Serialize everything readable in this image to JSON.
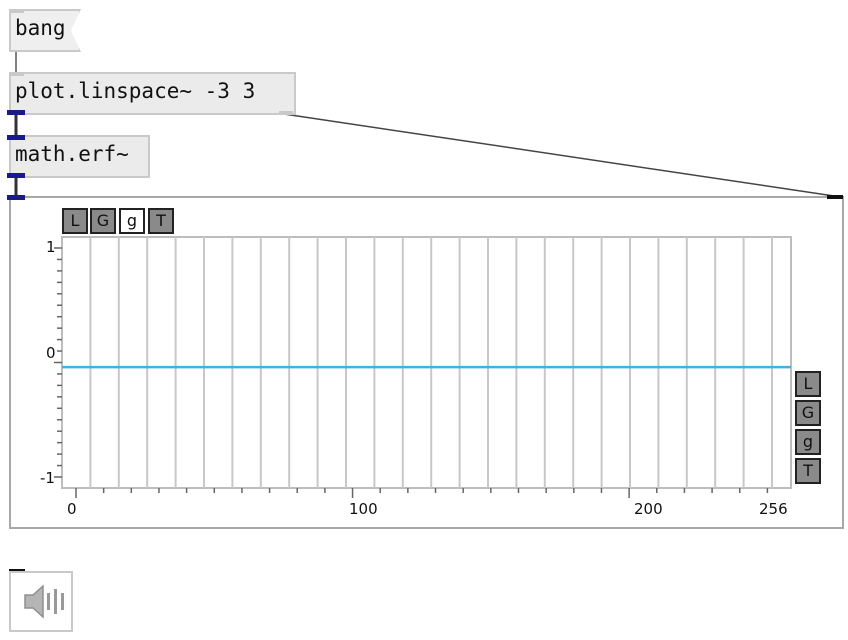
{
  "objects": {
    "bang_label": "bang",
    "linspace_label": "plot.linspace~ -3 3",
    "erf_label": "math.erf~"
  },
  "plot": {
    "top_buttons": [
      "L",
      "G",
      "g",
      "T"
    ],
    "side_buttons": [
      "L",
      "G",
      "g",
      "T"
    ],
    "active_top_button": "g"
  },
  "chart_data": {
    "type": "line",
    "x_ticks": [
      "0",
      "100",
      "200",
      "256"
    ],
    "y_ticks": [
      "1",
      "0",
      "-1"
    ],
    "xlim": [
      0,
      256
    ],
    "ylim": [
      -1,
      1
    ],
    "grid": true,
    "series": [
      {
        "x": [
          0,
          256
        ],
        "values": [
          -0.04,
          -0.04
        ],
        "color": "#3fb3d9"
      }
    ]
  },
  "colors": {
    "signal_inlet": "#1a1a8c",
    "plot_line": "#3fb3d9",
    "grid": "#c8c8c8"
  },
  "dac": {
    "icon": "speaker-icon"
  }
}
